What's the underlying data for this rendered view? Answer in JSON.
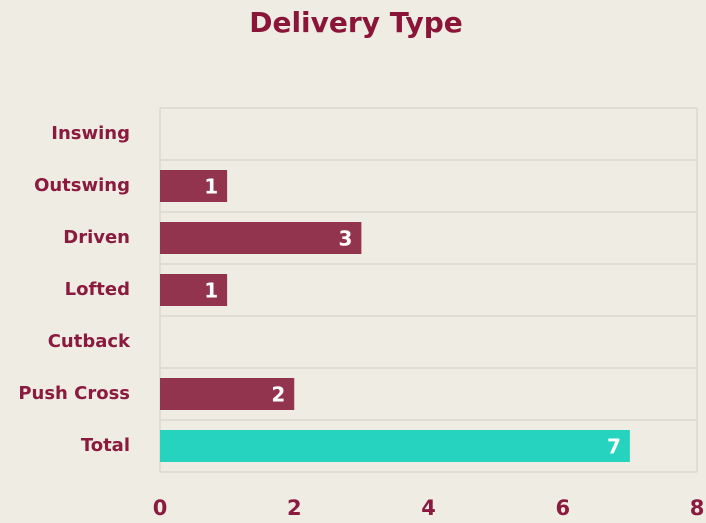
{
  "chart_data": {
    "type": "bar",
    "orientation": "horizontal",
    "title": "Delivery Type",
    "categories": [
      "Inswing",
      "Outswing",
      "Driven",
      "Lofted",
      "Cutback",
      "Push Cross",
      "Total"
    ],
    "values": [
      0,
      1,
      3,
      1,
      0,
      2,
      7
    ],
    "colors": [
      "#93344f",
      "#93344f",
      "#93344f",
      "#93344f",
      "#93344f",
      "#93344f",
      "#26d3be"
    ],
    "xlim": [
      0,
      8
    ],
    "xticks": [
      0,
      2,
      4,
      6,
      8
    ],
    "grid": true
  }
}
